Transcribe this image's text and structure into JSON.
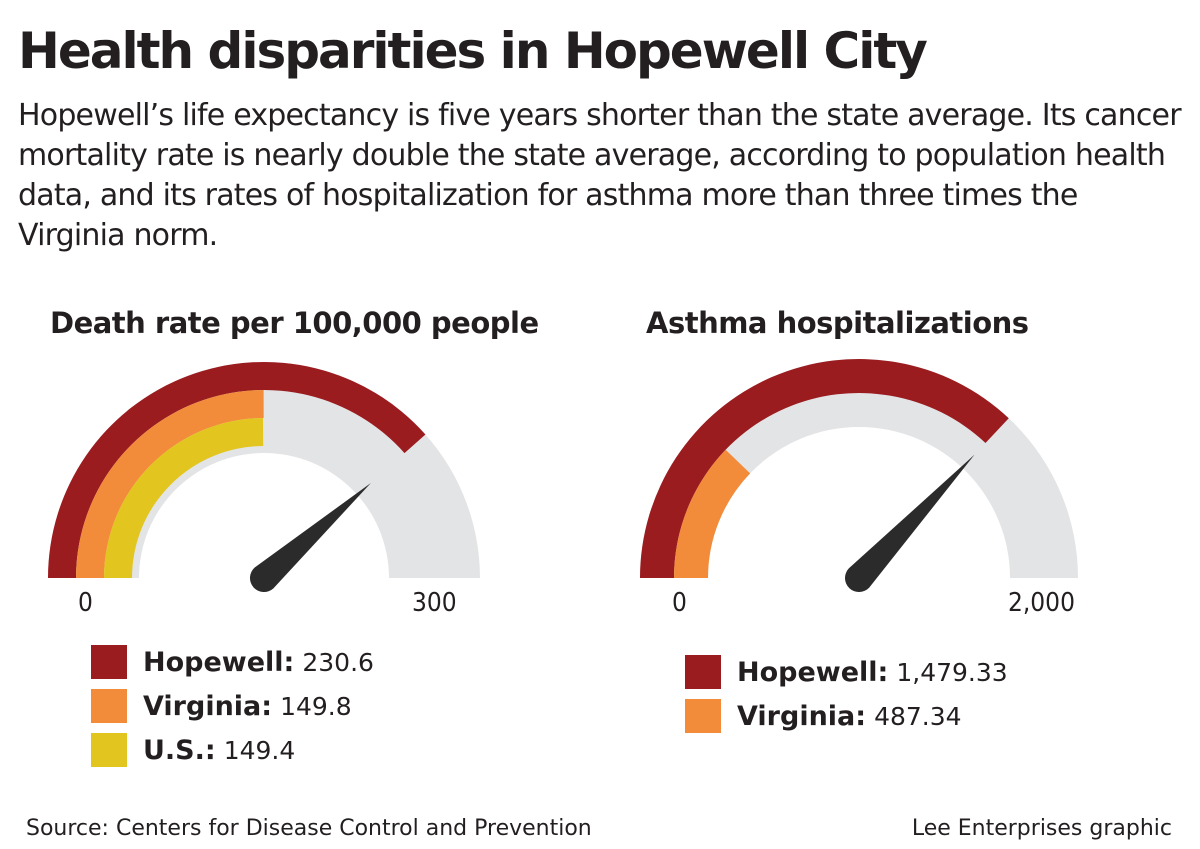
{
  "title": "Health disparities in Hopewell City",
  "dek": "Hopewell’s life expectancy is five years shorter than the state average. Its cancer mortality rate is nearly double the state average, according to population health data, and its rates of hospitalization for asthma more than three times the Virginia norm.",
  "source": "Source: Centers for Disease Control and Prevention",
  "credit": "Lee Enterprises graphic",
  "chart_data": [
    {
      "type": "gauge",
      "title": "Death rate per 100,000 people",
      "range": [
        0,
        300
      ],
      "tick_labels": [
        "0",
        "300"
      ],
      "needle_value": 230.6,
      "series": [
        {
          "name": "Hopewell:",
          "value": 230.6,
          "label": "230.6",
          "color": "#9b1c1f"
        },
        {
          "name": "Virginia:",
          "value": 149.8,
          "label": "149.8",
          "color": "#f28c3a"
        },
        {
          "name": "U.S.:",
          "value": 149.4,
          "label": "149.4",
          "color": "#e2c61f"
        }
      ],
      "track_color": "#e3e4e6"
    },
    {
      "type": "gauge",
      "title": "Asthma hospitalizations",
      "range": [
        0,
        2000
      ],
      "tick_labels": [
        "0",
        "2,000"
      ],
      "needle_value": 1479.33,
      "series": [
        {
          "name": "Hopewell:",
          "value": 1479.33,
          "label": "1,479.33",
          "color": "#9b1c1f"
        },
        {
          "name": "Virginia:",
          "value": 487.34,
          "label": "487.34",
          "color": "#f28c3a"
        }
      ],
      "track_color": "#e3e4e6"
    }
  ]
}
